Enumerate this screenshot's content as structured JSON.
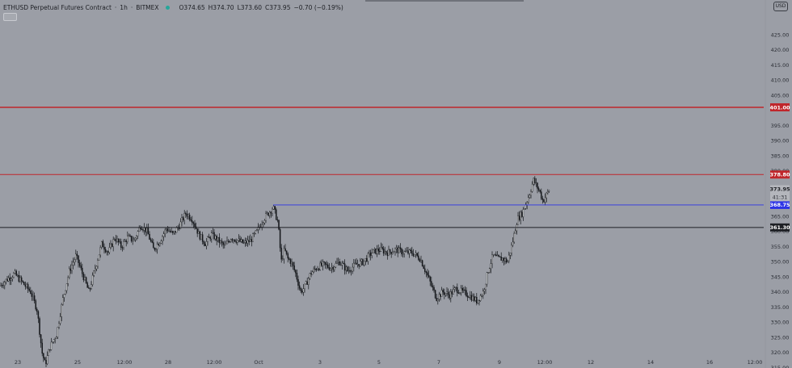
{
  "header": {
    "title": "ETHUSD Perpetual Futures Contract",
    "interval": "1h",
    "exchange": "BITMEX",
    "status_color": "#26a69a",
    "ohlc": {
      "open": "O374.65",
      "high": "H374.70",
      "low": "L373.60",
      "close": "C373.95",
      "change": "−0.70 (−0.19%)"
    }
  },
  "currency_badge": "USD",
  "chart_data": {
    "type": "candlestick",
    "symbol": "ETHUSD",
    "interval": "1h",
    "ylim": [
      313,
      430
    ],
    "y_ticks": [
      "425.00",
      "420.00",
      "415.00",
      "410.00",
      "405.00",
      "395.00",
      "390.00",
      "385.00",
      "380.00",
      "370.00",
      "365.00",
      "360.00",
      "355.00",
      "350.00",
      "345.00",
      "340.00",
      "335.00",
      "330.00",
      "325.00",
      "320.00",
      "315.00"
    ],
    "x_ticks": [
      "23",
      "25",
      "12:00",
      "28",
      "12:00",
      "Oct",
      "3",
      "5",
      "7",
      "9",
      "12:00",
      "12",
      "14",
      "16",
      "12:00"
    ],
    "price_path": [
      [
        0,
        342
      ],
      [
        8,
        344
      ],
      [
        18,
        346
      ],
      [
        28,
        343
      ],
      [
        38,
        340
      ],
      [
        46,
        334
      ],
      [
        52,
        320
      ],
      [
        56,
        316
      ],
      [
        62,
        322
      ],
      [
        70,
        326
      ],
      [
        78,
        338
      ],
      [
        86,
        347
      ],
      [
        94,
        352
      ],
      [
        102,
        346
      ],
      [
        110,
        340
      ],
      [
        118,
        348
      ],
      [
        126,
        356
      ],
      [
        134,
        353
      ],
      [
        142,
        358
      ],
      [
        150,
        355
      ],
      [
        158,
        358
      ],
      [
        166,
        357
      ],
      [
        174,
        362
      ],
      [
        182,
        360
      ],
      [
        190,
        354
      ],
      [
        198,
        357
      ],
      [
        206,
        361
      ],
      [
        214,
        359
      ],
      [
        222,
        362
      ],
      [
        230,
        366
      ],
      [
        238,
        364
      ],
      [
        246,
        359
      ],
      [
        254,
        356
      ],
      [
        262,
        359
      ],
      [
        270,
        357
      ],
      [
        278,
        355
      ],
      [
        286,
        358
      ],
      [
        294,
        357
      ],
      [
        302,
        356
      ],
      [
        310,
        357
      ],
      [
        318,
        360
      ],
      [
        326,
        364
      ],
      [
        332,
        366
      ],
      [
        338,
        368
      ],
      [
        344,
        363
      ],
      [
        348,
        350
      ],
      [
        352,
        354
      ],
      [
        356,
        351
      ],
      [
        360,
        350
      ],
      [
        366,
        346
      ],
      [
        372,
        340
      ],
      [
        378,
        342
      ],
      [
        384,
        346
      ],
      [
        392,
        348
      ],
      [
        400,
        349
      ],
      [
        410,
        348
      ],
      [
        420,
        350
      ],
      [
        430,
        347
      ],
      [
        440,
        349
      ],
      [
        450,
        350
      ],
      [
        460,
        353
      ],
      [
        470,
        354
      ],
      [
        480,
        353
      ],
      [
        490,
        354
      ],
      [
        500,
        353
      ],
      [
        510,
        353
      ],
      [
        520,
        351
      ],
      [
        528,
        346
      ],
      [
        534,
        342
      ],
      [
        540,
        338
      ],
      [
        548,
        340
      ],
      [
        556,
        339
      ],
      [
        564,
        341
      ],
      [
        572,
        340
      ],
      [
        580,
        339
      ],
      [
        590,
        337
      ],
      [
        598,
        340
      ],
      [
        604,
        347
      ],
      [
        610,
        352
      ],
      [
        616,
        351
      ],
      [
        622,
        351
      ],
      [
        628,
        350
      ],
      [
        634,
        356
      ],
      [
        640,
        364
      ],
      [
        646,
        366
      ],
      [
        652,
        370
      ],
      [
        656,
        373
      ],
      [
        660,
        377
      ],
      [
        664,
        375
      ],
      [
        668,
        373
      ],
      [
        672,
        370
      ],
      [
        676,
        372
      ],
      [
        680,
        374
      ]
    ],
    "horizontal_lines": [
      {
        "price": 401.0,
        "label": "401.00",
        "color": "#c0262b"
      },
      {
        "price": 378.8,
        "label": "378.80",
        "color": "#c0262b"
      },
      {
        "price": 368.75,
        "label": "368.75",
        "color": "#2d34e6"
      },
      {
        "price": 361.3,
        "label": "361.30",
        "color": "#1d1f24"
      }
    ],
    "last_price": {
      "price": 373.95,
      "label": "373.95",
      "countdown": "41:31"
    },
    "grid": false
  }
}
